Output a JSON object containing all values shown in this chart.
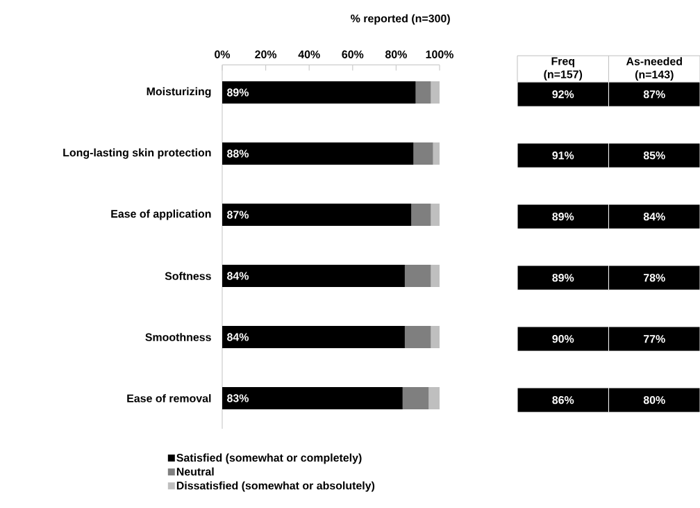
{
  "chart_data": [
    {
      "type": "bar",
      "orientation": "horizontal",
      "stacked": true,
      "xlabel": "% reported (n=300)",
      "categories": [
        "Moisturizing",
        "Long-lasting skin protection",
        "Ease of application",
        "Softness",
        "Smoothness",
        "Ease of removal"
      ],
      "series": [
        {
          "name": "Satisfied (somewhat or completely)",
          "color": "#000000",
          "values": [
            89,
            88,
            87,
            84,
            84,
            83
          ],
          "value_labels": [
            "89%",
            "88%",
            "87%",
            "84%",
            "84%",
            "83%"
          ]
        },
        {
          "name": "Neutral",
          "color": "#7f7f7f",
          "values": [
            7,
            9,
            9,
            12,
            12,
            12
          ]
        },
        {
          "name": "Dissatisfied (somewhat or absolutely)",
          "color": "#bfbfbf",
          "values": [
            4,
            3,
            4,
            4,
            4,
            5
          ]
        }
      ],
      "xlim": [
        0,
        100
      ],
      "xticks": [
        {
          "value": 0,
          "label": "0%"
        },
        {
          "value": 20,
          "label": "20%"
        },
        {
          "value": 40,
          "label": "40%"
        },
        {
          "value": 60,
          "label": "60%"
        },
        {
          "value": 80,
          "label": "80%"
        },
        {
          "value": 100,
          "label": "100%"
        }
      ],
      "legend": "bottom"
    },
    {
      "type": "other",
      "color": "#000000",
      "categories": [
        "Freq (n=157)",
        "As-needed (n=143)"
      ],
      "cell_labels": [
        [
          "92%",
          "87%"
        ],
        [
          "91%",
          "85%"
        ],
        [
          "89%",
          "84%"
        ],
        [
          "89%",
          "78%"
        ],
        [
          "90%",
          "77%"
        ],
        [
          "86%",
          "80%"
        ]
      ]
    }
  ]
}
